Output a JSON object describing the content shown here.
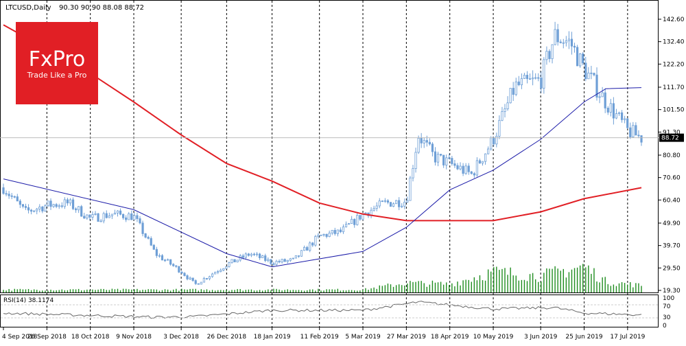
{
  "header": {
    "symbol_label": "LTCUSD,Daily",
    "ohlc_label": "90.30 90.90 88.08 88.72"
  },
  "watermark": {
    "brand": "FxPro",
    "tagline": "Trade Like a Pro",
    "color": "#e11f25"
  },
  "price_axis": {
    "ticks": [
      "142.60",
      "132.40",
      "122.20",
      "111.70",
      "101.50",
      "91.30",
      "80.80",
      "70.60",
      "60.40",
      "49.90",
      "39.70",
      "29.50",
      "19.30"
    ],
    "current_price": "88.72"
  },
  "rsi": {
    "label": "RSI(14) 38.1174",
    "levels": [
      "100",
      "70",
      "30",
      "0"
    ]
  },
  "time_axis": {
    "labels": [
      "4 Sep 2018",
      "26 Sep 2018",
      "18 Oct 2018",
      "9 Nov 2018",
      "3 Dec 2018",
      "26 Dec 2018",
      "18 Jan 2019",
      "11 Feb 2019",
      "5 Mar 2019",
      "27 Mar 2019",
      "18 Apr 2019",
      "10 May 2019",
      "3 Jun 2019",
      "25 Jun 2019",
      "17 Jul 2019"
    ]
  },
  "colors": {
    "candle": "#6e9fd6",
    "ma_slow": "#e11f25",
    "ma_fast": "#1a1aa8",
    "volume": "#1e8c1e",
    "rsi": "#666666",
    "grid": "#000000"
  },
  "chart_data": {
    "type": "candlestick",
    "symbol": "LTCUSD",
    "timeframe": "Daily",
    "last_bar": {
      "open": 90.3,
      "high": 90.9,
      "low": 88.08,
      "close": 88.72
    },
    "close_series": [
      {
        "date": "2018-09-04",
        "close": 66
      },
      {
        "date": "2018-09-15",
        "close": 55
      },
      {
        "date": "2018-09-26",
        "close": 58
      },
      {
        "date": "2018-10-07",
        "close": 59
      },
      {
        "date": "2018-10-18",
        "close": 52
      },
      {
        "date": "2018-10-29",
        "close": 54
      },
      {
        "date": "2018-11-09",
        "close": 53
      },
      {
        "date": "2018-11-20",
        "close": 36
      },
      {
        "date": "2018-12-03",
        "close": 28
      },
      {
        "date": "2018-12-10",
        "close": 22
      },
      {
        "date": "2018-12-26",
        "close": 31
      },
      {
        "date": "2019-01-07",
        "close": 36
      },
      {
        "date": "2019-01-18",
        "close": 32
      },
      {
        "date": "2019-01-29",
        "close": 33
      },
      {
        "date": "2019-02-11",
        "close": 44
      },
      {
        "date": "2019-02-22",
        "close": 46
      },
      {
        "date": "2019-03-05",
        "close": 54
      },
      {
        "date": "2019-03-16",
        "close": 59
      },
      {
        "date": "2019-03-27",
        "close": 60
      },
      {
        "date": "2019-04-02",
        "close": 90
      },
      {
        "date": "2019-04-10",
        "close": 80
      },
      {
        "date": "2019-04-18",
        "close": 77
      },
      {
        "date": "2019-04-29",
        "close": 72
      },
      {
        "date": "2019-05-10",
        "close": 88
      },
      {
        "date": "2019-05-21",
        "close": 112
      },
      {
        "date": "2019-06-03",
        "close": 115
      },
      {
        "date": "2019-06-10",
        "close": 135
      },
      {
        "date": "2019-06-18",
        "close": 132
      },
      {
        "date": "2019-06-25",
        "close": 120
      },
      {
        "date": "2019-07-06",
        "close": 105
      },
      {
        "date": "2019-07-17",
        "close": 92
      },
      {
        "date": "2019-07-24",
        "close": 88.72
      }
    ],
    "ma_fast_series": [
      {
        "date": "2018-09-04",
        "value": 70
      },
      {
        "date": "2018-11-09",
        "value": 56
      },
      {
        "date": "2018-12-26",
        "value": 36
      },
      {
        "date": "2019-01-18",
        "value": 30
      },
      {
        "date": "2019-03-05",
        "value": 37
      },
      {
        "date": "2019-03-27",
        "value": 48
      },
      {
        "date": "2019-04-18",
        "value": 65
      },
      {
        "date": "2019-05-10",
        "value": 74
      },
      {
        "date": "2019-06-03",
        "value": 88
      },
      {
        "date": "2019-06-25",
        "value": 105
      },
      {
        "date": "2019-07-06",
        "value": 111
      },
      {
        "date": "2019-07-24",
        "value": 111.5
      }
    ],
    "ma_slow_series": [
      {
        "date": "2018-09-04",
        "value": 140
      },
      {
        "date": "2018-10-18",
        "value": 118
      },
      {
        "date": "2018-11-09",
        "value": 105
      },
      {
        "date": "2018-12-03",
        "value": 90
      },
      {
        "date": "2018-12-26",
        "value": 77
      },
      {
        "date": "2019-01-18",
        "value": 69
      },
      {
        "date": "2019-02-11",
        "value": 59
      },
      {
        "date": "2019-03-05",
        "value": 54
      },
      {
        "date": "2019-03-27",
        "value": 51
      },
      {
        "date": "2019-04-18",
        "value": 51
      },
      {
        "date": "2019-05-10",
        "value": 51
      },
      {
        "date": "2019-06-03",
        "value": 55
      },
      {
        "date": "2019-06-25",
        "value": 61
      },
      {
        "date": "2019-07-24",
        "value": 66
      }
    ],
    "volume_relative": [
      {
        "date": "2018-09-04",
        "value": 0.1
      },
      {
        "date": "2019-03-05",
        "value": 0.1
      },
      {
        "date": "2019-03-27",
        "value": 0.35
      },
      {
        "date": "2019-04-18",
        "value": 0.3
      },
      {
        "date": "2019-05-10",
        "value": 0.75
      },
      {
        "date": "2019-06-03",
        "value": 0.6
      },
      {
        "date": "2019-06-25",
        "value": 0.95
      },
      {
        "date": "2019-07-06",
        "value": 0.4
      },
      {
        "date": "2019-07-24",
        "value": 0.25
      }
    ],
    "rsi_series": [
      {
        "date": "2018-09-04",
        "value": 45
      },
      {
        "date": "2018-11-20",
        "value": 30
      },
      {
        "date": "2018-12-10",
        "value": 32
      },
      {
        "date": "2019-01-18",
        "value": 55
      },
      {
        "date": "2019-03-05",
        "value": 55
      },
      {
        "date": "2019-04-02",
        "value": 85
      },
      {
        "date": "2019-05-10",
        "value": 60
      },
      {
        "date": "2019-06-10",
        "value": 65
      },
      {
        "date": "2019-06-25",
        "value": 45
      },
      {
        "date": "2019-07-17",
        "value": 40
      },
      {
        "date": "2019-07-24",
        "value": 38.1174
      }
    ],
    "ylim": [
      19.3,
      142.6
    ],
    "rsi_ylim": [
      0,
      100
    ]
  }
}
